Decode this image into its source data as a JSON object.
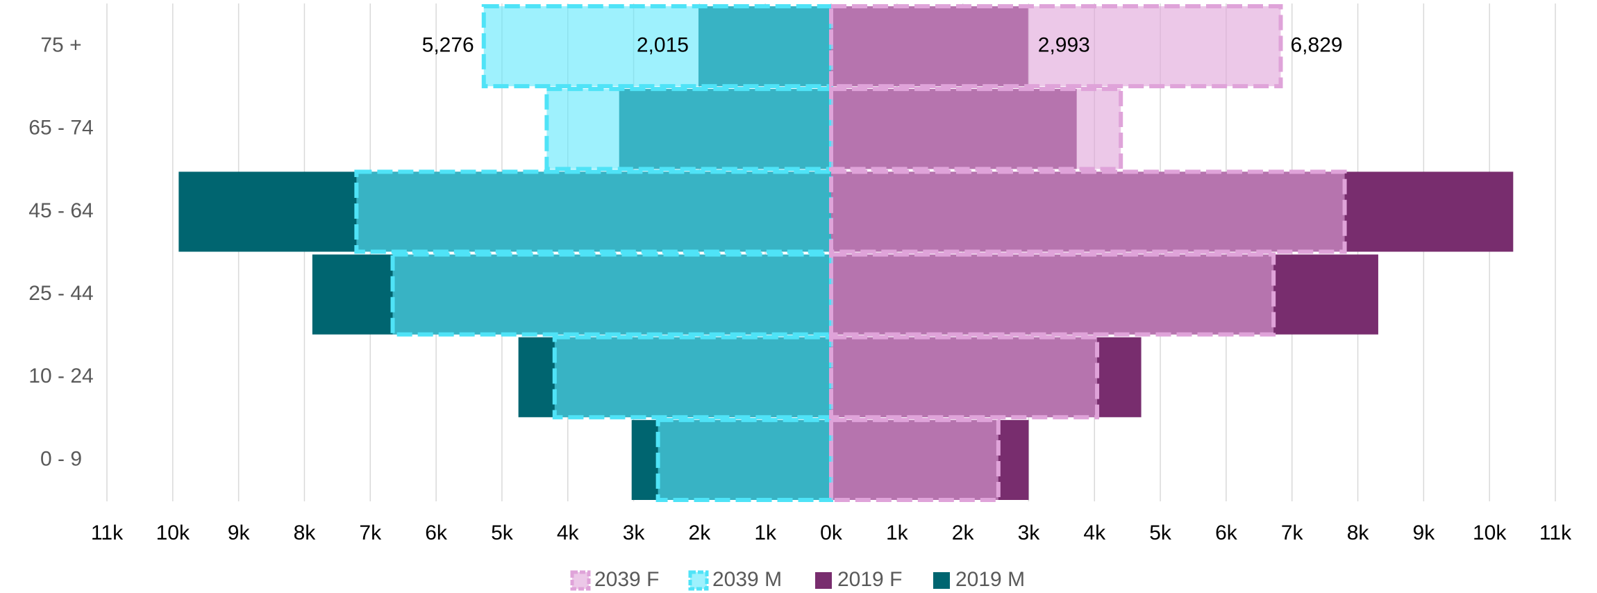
{
  "chart_data": {
    "type": "pyramid",
    "categories": [
      "0 - 9",
      "10 - 24",
      "25 - 44",
      "45 - 64",
      "65 - 74",
      "75 +"
    ],
    "series": [
      {
        "name": "2039 F",
        "color": "rgba(223,163,217,0.6)",
        "edge_color": "#dfa3d9",
        "dashed": true,
        "values": [
          2540,
          4040,
          6720,
          7800,
          4400,
          6829
        ],
        "value_labels": [
          null,
          null,
          null,
          null,
          null,
          "6,829"
        ]
      },
      {
        "name": "2039 M",
        "color": "rgba(94,232,251,0.6)",
        "edge_color": "#4fe3f7",
        "dashed": true,
        "values": [
          -2630,
          -4200,
          -6660,
          -7210,
          -4320,
          -5276
        ],
        "value_labels": [
          null,
          null,
          null,
          null,
          null,
          "5,276"
        ]
      },
      {
        "name": "2019 F",
        "color": "#782d6e",
        "dashed": false,
        "values": [
          3000,
          4710,
          8310,
          10360,
          3730,
          2993
        ],
        "value_labels": [
          null,
          null,
          null,
          null,
          null,
          "2,993"
        ]
      },
      {
        "name": "2019 M",
        "color": "#006570",
        "dashed": false,
        "values": [
          -3030,
          -4750,
          -7880,
          -9910,
          -3220,
          -2015
        ],
        "value_labels": [
          null,
          null,
          null,
          null,
          null,
          "2,015"
        ]
      }
    ],
    "xlim": [
      -11000,
      11000
    ],
    "xticks": [
      {
        "value": -11000,
        "label": "11k"
      },
      {
        "value": -10000,
        "label": "10k"
      },
      {
        "value": -9000,
        "label": "9k"
      },
      {
        "value": -8000,
        "label": "8k"
      },
      {
        "value": -7000,
        "label": "7k"
      },
      {
        "value": -6000,
        "label": "6k"
      },
      {
        "value": -5000,
        "label": "5k"
      },
      {
        "value": -4000,
        "label": "4k"
      },
      {
        "value": -3000,
        "label": "3k"
      },
      {
        "value": -2000,
        "label": "2k"
      },
      {
        "value": -1000,
        "label": "1k"
      },
      {
        "value": 0,
        "label": "0k"
      },
      {
        "value": 1000,
        "label": "1k"
      },
      {
        "value": 2000,
        "label": "2k"
      },
      {
        "value": 3000,
        "label": "3k"
      },
      {
        "value": 4000,
        "label": "4k"
      },
      {
        "value": 5000,
        "label": "5k"
      },
      {
        "value": 6000,
        "label": "6k"
      },
      {
        "value": 7000,
        "label": "7k"
      },
      {
        "value": 8000,
        "label": "8k"
      },
      {
        "value": 9000,
        "label": "9k"
      },
      {
        "value": 10000,
        "label": "10k"
      },
      {
        "value": 11000,
        "label": "11k"
      }
    ],
    "grid": true,
    "legend": "bottom"
  }
}
